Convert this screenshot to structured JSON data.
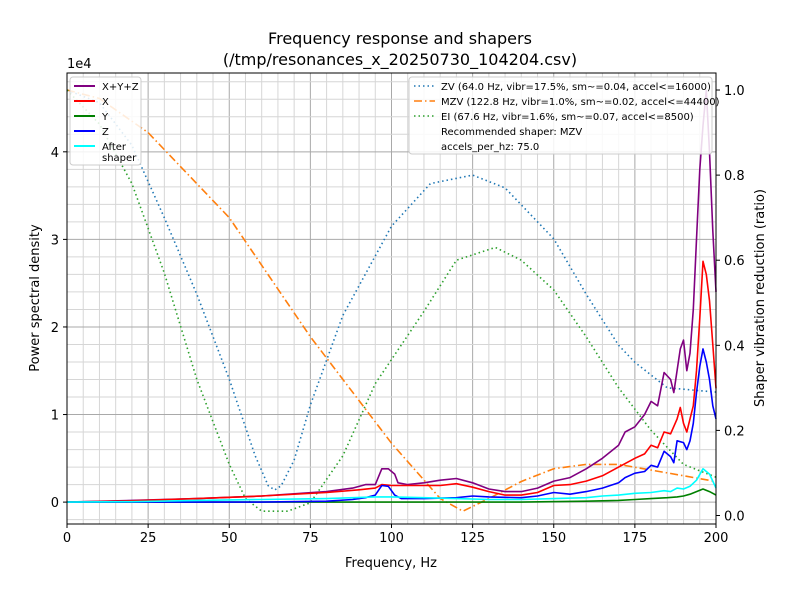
{
  "chart_data": {
    "type": "line",
    "title": "Frequency response and shapers",
    "subtitle": "(/tmp/resonances_x_20250730_104204.csv)",
    "xlabel": "Frequency, Hz",
    "ylabel": "Power spectral density",
    "y2label": "Shaper vibration reduction (ratio)",
    "y_offset_label": "1e4",
    "xlim": [
      0,
      200
    ],
    "ylim": [
      -2500,
      49000
    ],
    "y2lim": [
      -0.02,
      1.04
    ],
    "x_ticks": [
      0,
      25,
      50,
      75,
      100,
      125,
      150,
      175,
      200
    ],
    "y_ticks": [
      0,
      10000,
      20000,
      30000,
      40000
    ],
    "y_tick_labels": [
      "0",
      "1",
      "2",
      "3",
      "4"
    ],
    "y2_ticks": [
      0.0,
      0.2,
      0.4,
      0.6,
      0.8,
      1.0
    ],
    "y2_tick_labels": [
      "0.0",
      "0.2",
      "0.4",
      "0.6",
      "0.8",
      "1.0"
    ],
    "grid": true,
    "legend_left": {
      "placement": "upper-left",
      "entries": [
        {
          "label": "X+Y+Z",
          "color": "#800080"
        },
        {
          "label": "X",
          "color": "#ff0000"
        },
        {
          "label": "Y",
          "color": "#008000"
        },
        {
          "label": "Z",
          "color": "#0000ff"
        },
        {
          "label": "After\nshaper",
          "color": "#00ffff"
        }
      ]
    },
    "legend_right": {
      "placement": "upper-right",
      "entries": [
        {
          "label": "ZV (64.0 Hz, vibr=17.5%, sm~=0.04, accel<=16000)",
          "color": "#1f77b4",
          "style": "dotted"
        },
        {
          "label": "MZV (122.8 Hz, vibr=1.0%, sm~=0.02, accel<=44400)",
          "color": "#ff7f0e",
          "style": "dashdot"
        },
        {
          "label": "EI (67.6 Hz, vibr=1.6%, sm~=0.07, accel<=8500)",
          "color": "#2ca02c",
          "style": "dotted"
        },
        {
          "label": "Recommended shaper: MZV",
          "color": "",
          "style": "none"
        },
        {
          "label": "accels_per_hz: 75.0",
          "color": "",
          "style": "none"
        }
      ]
    },
    "series": [
      {
        "name": "X+Y+Z",
        "axis": "left",
        "color": "#800080",
        "style": "solid",
        "points": [
          [
            0,
            0
          ],
          [
            20,
            200
          ],
          [
            40,
            400
          ],
          [
            60,
            700
          ],
          [
            80,
            1200
          ],
          [
            88,
            1600
          ],
          [
            92,
            2000
          ],
          [
            95,
            2000
          ],
          [
            97,
            3800
          ],
          [
            99,
            3800
          ],
          [
            101,
            3200
          ],
          [
            102,
            2200
          ],
          [
            105,
            2000
          ],
          [
            110,
            2200
          ],
          [
            115,
            2500
          ],
          [
            120,
            2700
          ],
          [
            125,
            2200
          ],
          [
            130,
            1500
          ],
          [
            135,
            1200
          ],
          [
            140,
            1200
          ],
          [
            145,
            1600
          ],
          [
            150,
            2400
          ],
          [
            155,
            2800
          ],
          [
            160,
            3800
          ],
          [
            165,
            5000
          ],
          [
            170,
            6500
          ],
          [
            172,
            8000
          ],
          [
            175,
            8600
          ],
          [
            178,
            10000
          ],
          [
            180,
            11500
          ],
          [
            182,
            11000
          ],
          [
            184,
            14800
          ],
          [
            186,
            14000
          ],
          [
            187,
            12500
          ],
          [
            189,
            17500
          ],
          [
            190,
            18500
          ],
          [
            191,
            15000
          ],
          [
            192,
            17000
          ],
          [
            193,
            22000
          ],
          [
            194,
            30000
          ],
          [
            195,
            38000
          ],
          [
            196,
            43000
          ],
          [
            197,
            47000
          ],
          [
            198,
            40000
          ],
          [
            199,
            31000
          ],
          [
            200,
            24000
          ]
        ]
      },
      {
        "name": "X",
        "axis": "left",
        "color": "#ff0000",
        "style": "solid",
        "points": [
          [
            0,
            0
          ],
          [
            20,
            150
          ],
          [
            40,
            400
          ],
          [
            60,
            700
          ],
          [
            80,
            1100
          ],
          [
            90,
            1400
          ],
          [
            95,
            1600
          ],
          [
            97,
            2000
          ],
          [
            100,
            1900
          ],
          [
            105,
            1900
          ],
          [
            110,
            1900
          ],
          [
            115,
            1900
          ],
          [
            120,
            2100
          ],
          [
            125,
            1700
          ],
          [
            130,
            1200
          ],
          [
            135,
            800
          ],
          [
            140,
            800
          ],
          [
            145,
            1100
          ],
          [
            150,
            1900
          ],
          [
            155,
            2000
          ],
          [
            160,
            2400
          ],
          [
            165,
            3000
          ],
          [
            170,
            4000
          ],
          [
            175,
            5000
          ],
          [
            178,
            5500
          ],
          [
            180,
            6500
          ],
          [
            182,
            6200
          ],
          [
            184,
            8000
          ],
          [
            186,
            7800
          ],
          [
            188,
            9500
          ],
          [
            189,
            10800
          ],
          [
            190,
            9000
          ],
          [
            191,
            8000
          ],
          [
            192,
            9500
          ],
          [
            193,
            11000
          ],
          [
            194,
            15000
          ],
          [
            195,
            21000
          ],
          [
            196,
            27500
          ],
          [
            197,
            26000
          ],
          [
            198,
            23000
          ],
          [
            199,
            18000
          ],
          [
            200,
            13000
          ]
        ]
      },
      {
        "name": "Y",
        "axis": "left",
        "color": "#008000",
        "style": "solid",
        "points": [
          [
            0,
            0
          ],
          [
            40,
            0
          ],
          [
            60,
            0
          ],
          [
            80,
            0
          ],
          [
            90,
            0
          ],
          [
            100,
            0
          ],
          [
            120,
            0
          ],
          [
            140,
            0
          ],
          [
            160,
            100
          ],
          [
            170,
            200
          ],
          [
            175,
            300
          ],
          [
            180,
            400
          ],
          [
            185,
            500
          ],
          [
            188,
            600
          ],
          [
            190,
            700
          ],
          [
            192,
            900
          ],
          [
            194,
            1200
          ],
          [
            196,
            1500
          ],
          [
            198,
            1200
          ],
          [
            200,
            800
          ]
        ]
      },
      {
        "name": "Z",
        "axis": "left",
        "color": "#0000ff",
        "style": "solid",
        "points": [
          [
            0,
            0
          ],
          [
            20,
            0
          ],
          [
            40,
            0
          ],
          [
            60,
            0
          ],
          [
            80,
            100
          ],
          [
            88,
            300
          ],
          [
            92,
            500
          ],
          [
            95,
            800
          ],
          [
            97,
            1900
          ],
          [
            99,
            1800
          ],
          [
            101,
            800
          ],
          [
            103,
            400
          ],
          [
            110,
            400
          ],
          [
            120,
            500
          ],
          [
            125,
            700
          ],
          [
            130,
            600
          ],
          [
            140,
            500
          ],
          [
            145,
            700
          ],
          [
            150,
            1100
          ],
          [
            155,
            900
          ],
          [
            160,
            1200
          ],
          [
            165,
            1600
          ],
          [
            170,
            2200
          ],
          [
            172,
            2800
          ],
          [
            175,
            3300
          ],
          [
            178,
            3500
          ],
          [
            180,
            4200
          ],
          [
            182,
            4000
          ],
          [
            184,
            5800
          ],
          [
            186,
            5200
          ],
          [
            187,
            4500
          ],
          [
            188,
            7000
          ],
          [
            190,
            6800
          ],
          [
            191,
            6000
          ],
          [
            192,
            7000
          ],
          [
            193,
            9000
          ],
          [
            194,
            12500
          ],
          [
            195,
            15500
          ],
          [
            196,
            17500
          ],
          [
            197,
            16000
          ],
          [
            198,
            14000
          ],
          [
            199,
            11000
          ],
          [
            200,
            9500
          ]
        ]
      },
      {
        "name": "After\nshaper",
        "axis": "left",
        "color": "#00ffff",
        "style": "solid",
        "points": [
          [
            0,
            0
          ],
          [
            20,
            50
          ],
          [
            40,
            200
          ],
          [
            60,
            300
          ],
          [
            80,
            400
          ],
          [
            95,
            600
          ],
          [
            100,
            600
          ],
          [
            110,
            500
          ],
          [
            120,
            400
          ],
          [
            130,
            300
          ],
          [
            140,
            300
          ],
          [
            150,
            400
          ],
          [
            160,
            500
          ],
          [
            165,
            700
          ],
          [
            170,
            800
          ],
          [
            175,
            1000
          ],
          [
            180,
            1100
          ],
          [
            184,
            1300
          ],
          [
            186,
            1200
          ],
          [
            188,
            1600
          ],
          [
            190,
            1500
          ],
          [
            192,
            1800
          ],
          [
            194,
            2500
          ],
          [
            196,
            3800
          ],
          [
            198,
            3200
          ],
          [
            200,
            1600
          ]
        ]
      },
      {
        "name": "ZV (64.0 Hz, vibr=17.5%, sm~=0.04, accel<=16000)",
        "axis": "right",
        "color": "#1f77b4",
        "style": "dotted",
        "points": [
          [
            0,
            1.0
          ],
          [
            10,
            0.97
          ],
          [
            20,
            0.87
          ],
          [
            30,
            0.7
          ],
          [
            40,
            0.52
          ],
          [
            50,
            0.32
          ],
          [
            58,
            0.14
          ],
          [
            62,
            0.07
          ],
          [
            64,
            0.06
          ],
          [
            66,
            0.07
          ],
          [
            70,
            0.13
          ],
          [
            75,
            0.26
          ],
          [
            85,
            0.47
          ],
          [
            100,
            0.68
          ],
          [
            112,
            0.78
          ],
          [
            125,
            0.8
          ],
          [
            135,
            0.77
          ],
          [
            150,
            0.65
          ],
          [
            160,
            0.52
          ],
          [
            170,
            0.4
          ],
          [
            175,
            0.36
          ],
          [
            185,
            0.3
          ],
          [
            200,
            0.29
          ]
        ]
      },
      {
        "name": "MZV (122.8 Hz, vibr=1.0%, sm~=0.02, accel<=44400)",
        "axis": "right",
        "color": "#ff7f0e",
        "style": "dashdot",
        "points": [
          [
            0,
            1.0
          ],
          [
            10,
            0.98
          ],
          [
            25,
            0.9
          ],
          [
            50,
            0.7
          ],
          [
            75,
            0.42
          ],
          [
            100,
            0.17
          ],
          [
            115,
            0.04
          ],
          [
            122,
            0.01
          ],
          [
            130,
            0.04
          ],
          [
            140,
            0.08
          ],
          [
            150,
            0.11
          ],
          [
            160,
            0.12
          ],
          [
            170,
            0.12
          ],
          [
            185,
            0.1
          ],
          [
            200,
            0.08
          ]
        ]
      },
      {
        "name": "EI (67.6 Hz, vibr=1.6%, sm~=0.07, accel<=8500)",
        "axis": "right",
        "color": "#2ca02c",
        "style": "dotted",
        "points": [
          [
            0,
            1.0
          ],
          [
            10,
            0.92
          ],
          [
            20,
            0.78
          ],
          [
            30,
            0.57
          ],
          [
            40,
            0.32
          ],
          [
            50,
            0.12
          ],
          [
            55,
            0.04
          ],
          [
            60,
            0.01
          ],
          [
            68,
            0.01
          ],
          [
            75,
            0.03
          ],
          [
            85,
            0.14
          ],
          [
            95,
            0.31
          ],
          [
            110,
            0.48
          ],
          [
            120,
            0.6
          ],
          [
            132,
            0.63
          ],
          [
            140,
            0.6
          ],
          [
            150,
            0.53
          ],
          [
            160,
            0.42
          ],
          [
            170,
            0.3
          ],
          [
            180,
            0.2
          ],
          [
            190,
            0.12
          ],
          [
            200,
            0.09
          ]
        ]
      }
    ]
  }
}
